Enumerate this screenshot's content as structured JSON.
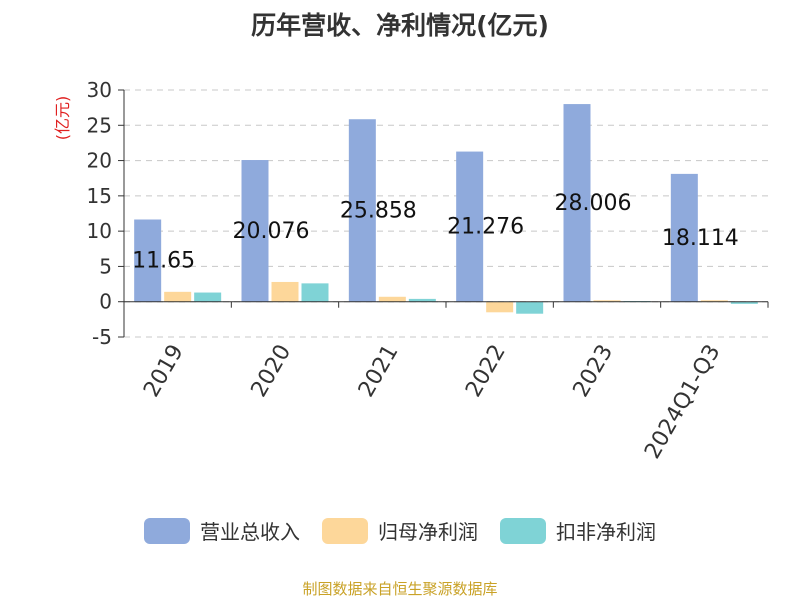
{
  "title": "历年营收、净利情况(亿元)",
  "source": "制图数据来自恒生聚源数据库",
  "chart_data": {
    "type": "bar",
    "title": "历年营收、净利情况(亿元)",
    "ylabel": "(亿元)",
    "ylim": [
      -5,
      30
    ],
    "yticks": [
      -5,
      0,
      5,
      10,
      15,
      20,
      25,
      30
    ],
    "grid": true,
    "legend_position": "bottom",
    "categories": [
      "2019",
      "2020",
      "2021",
      "2022",
      "2023",
      "2024Q1-Q3"
    ],
    "series": [
      {
        "name": "营业总收入",
        "color": "#8faadc",
        "values": [
          11.65,
          20.076,
          25.858,
          21.276,
          28.006,
          18.114
        ],
        "labels": [
          "11.65",
          "20.076",
          "25.858",
          "21.276",
          "28.006",
          "18.114"
        ]
      },
      {
        "name": "归母净利润",
        "color": "#fdd79a",
        "values": [
          1.4,
          2.8,
          0.7,
          -1.5,
          0.2,
          0.2
        ]
      },
      {
        "name": "扣非净利润",
        "color": "#7fd3d6",
        "values": [
          1.3,
          2.6,
          0.4,
          -1.7,
          0.1,
          -0.3
        ]
      }
    ]
  }
}
